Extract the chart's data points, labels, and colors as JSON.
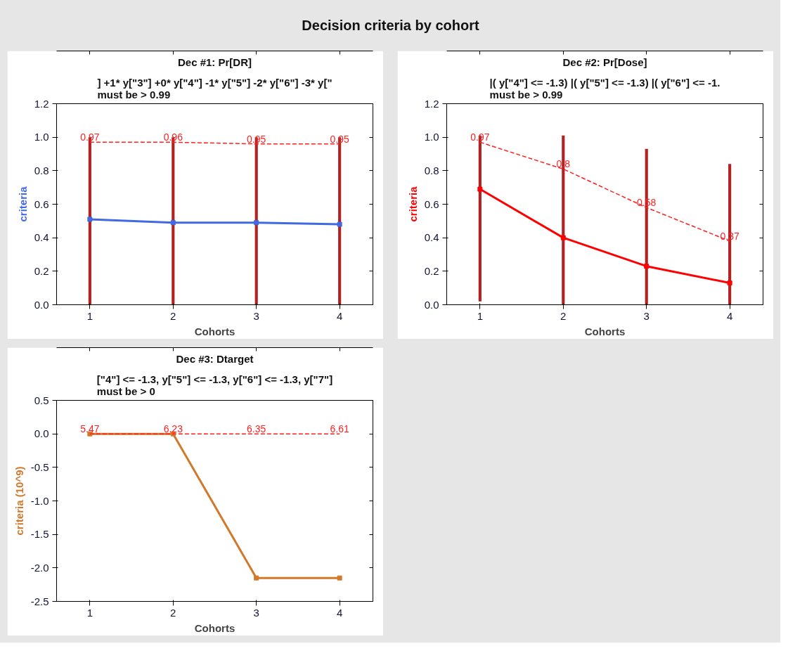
{
  "chart_data": [
    {
      "type": "other",
      "title": "Decision criteria by cohort"
    },
    {
      "type": "line",
      "title": "Dec #1: Pr[DR]",
      "subtitle": "] +1* y[\"3\"] +0* y[\"4\"] -1* y[\"5\"] -2* y[\"6\"] -3* y[\"\nmust be > 0.99",
      "xlabel": "Cohorts",
      "ylabel": "criteria",
      "x": [
        1,
        2,
        3,
        4
      ],
      "xlim": [
        0.6,
        4.4
      ],
      "xticks": [
        1,
        2,
        3,
        4
      ],
      "ylim": [
        0,
        1.2
      ],
      "yticks": [
        {
          "value": 0,
          "label": "0.0"
        },
        0.2,
        0.4,
        0.6,
        0.8,
        {
          "value": 1,
          "label": "1.0"
        },
        1.2
      ],
      "series": [
        {
          "type": "bar",
          "color": "#b22222",
          "values": [
            1.0,
            1.0,
            1.0,
            1.0
          ]
        },
        {
          "color": "#4169e1",
          "marker": "square",
          "values": [
            0.51,
            0.49,
            0.49,
            0.48
          ]
        },
        {
          "color": "#ff2020",
          "line_style": "dashed",
          "values": [
            0.97,
            0.97,
            0.96,
            0.96
          ]
        }
      ],
      "annotations": [
        {
          "text": "0.97",
          "x": 1,
          "y": 0.97
        },
        {
          "text": "0.96",
          "x": 2,
          "y": 0.97
        },
        {
          "text": "0.95",
          "x": 3,
          "y": 0.96
        },
        {
          "text": "0.95",
          "x": 4,
          "y": 0.96
        }
      ]
    },
    {
      "type": "line",
      "title": "Dec #2: Pr[Dose]",
      "subtitle": "|( y[\"4\"] <= -1.3) |( y[\"5\"] <= -1.3) |( y[\"6\"] <= -1.\nmust be > 0.99",
      "xlabel": "Cohorts",
      "ylabel": "criteria",
      "x": [
        1,
        2,
        3,
        4
      ],
      "xlim": [
        0.6,
        4.4
      ],
      "xticks": [
        1,
        2,
        3,
        4
      ],
      "ylim": [
        0,
        1.2
      ],
      "yticks": [
        {
          "value": 0,
          "label": "0.0"
        },
        0.2,
        0.4,
        0.6,
        0.8,
        {
          "value": 1,
          "label": "1.0"
        },
        1.2
      ],
      "series": [
        {
          "type": "bar",
          "color": "#b22222",
          "values": [
            0.99,
            1.01,
            0.93,
            0.84
          ],
          "base": [
            0.02,
            0,
            0,
            0
          ]
        },
        {
          "color": "#ff0000",
          "marker": "square",
          "values": [
            0.69,
            0.4,
            0.23,
            0.13
          ]
        },
        {
          "color": "#ff2020",
          "line_style": "dashed",
          "values": [
            0.97,
            0.81,
            0.58,
            0.38
          ]
        }
      ],
      "annotations": [
        {
          "text": "0.97",
          "x": 1,
          "y": 0.97
        },
        {
          "text": "0.8",
          "x": 2,
          "y": 0.81
        },
        {
          "text": "0.58",
          "x": 3,
          "y": 0.58
        },
        {
          "text": "0.37",
          "x": 4,
          "y": 0.38
        }
      ]
    },
    {
      "type": "line",
      "title": "Dec #3: Dtarget",
      "subtitle": "[\"4\"] <= -1.3, y[\"5\"] <= -1.3, y[\"6\"] <= -1.3, y[\"7\"]\nmust be > 0",
      "xlabel": "Cohorts",
      "ylabel": "criteria (10^9)",
      "x": [
        1,
        2,
        3,
        4
      ],
      "xlim": [
        0.6,
        4.4
      ],
      "xticks": [
        1,
        2,
        3,
        4
      ],
      "ylim": [
        -2.5,
        0.5
      ],
      "yticks": [
        -2.5,
        {
          "value": -2,
          "label": "-2.0"
        },
        -1.5,
        {
          "value": -1,
          "label": "-1.0"
        },
        -0.5,
        {
          "value": 0,
          "label": "0.0"
        },
        0.5
      ],
      "series": [
        {
          "color": "#d2782a",
          "marker": "square",
          "values": [
            0,
            0,
            -2.15,
            -2.15
          ]
        },
        {
          "color": "#ff2020",
          "line_style": "dashed",
          "values": [
            0,
            0,
            0,
            0
          ]
        }
      ],
      "annotations": [
        {
          "text": "5.47",
          "x": 1,
          "y": 0
        },
        {
          "text": "6.23",
          "x": 2,
          "y": 0
        },
        {
          "text": "6.35",
          "x": 3,
          "y": 0
        },
        {
          "text": "6.61",
          "x": 4,
          "y": 0
        }
      ]
    }
  ]
}
